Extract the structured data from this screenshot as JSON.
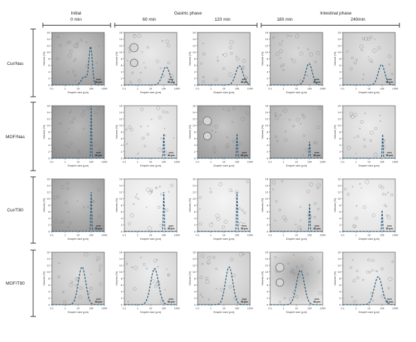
{
  "header": {
    "initial": "Initial",
    "initial_time": "0 min",
    "gastric": "Gastric phase",
    "intestinal": "Intestinal phase",
    "times": [
      "60 min",
      "120 min",
      "180 min",
      "240min"
    ]
  },
  "rows": [
    "Cur/Nas",
    "MOF/Nas",
    "Cur/T80",
    "MOF/T80"
  ],
  "axis": {
    "ylabel": "Volume (%)",
    "xlabel": "Droplet size (μm)",
    "yticks": [
      "0",
      "2",
      "4",
      "6",
      "8",
      "10",
      "12",
      "14",
      "16"
    ],
    "xticks": [
      "0.1",
      "1",
      "10",
      "100",
      "1000"
    ]
  },
  "scale_bar": "50 μm",
  "colors": {
    "curve": "#2d5f7f",
    "frame": "#555555",
    "bracket": "#333333"
  },
  "chart_data": {
    "type": "line",
    "description_units": "x = droplet size (μm, log scale), y = volume (%)",
    "xlim": [
      0.1,
      1000
    ],
    "ylim": [
      0,
      16
    ],
    "xscale": "log",
    "columns": [
      "0 min",
      "60 min",
      "120 min",
      "180 min",
      "240min"
    ],
    "panels": [
      {
        "row": "Cur/Nas",
        "col": "0 min",
        "peaks": [
          {
            "x": 30,
            "y": 2.5,
            "w": 0.22
          },
          {
            "x": 90,
            "y": 11.5,
            "w": 0.13
          }
        ]
      },
      {
        "row": "Cur/Nas",
        "col": "60 min",
        "peaks": [
          {
            "x": 150,
            "y": 5.5,
            "w": 0.28
          }
        ]
      },
      {
        "row": "Cur/Nas",
        "col": "120 min",
        "peaks": [
          {
            "x": 150,
            "y": 5.8,
            "w": 0.28
          }
        ]
      },
      {
        "row": "Cur/Nas",
        "col": "180 min",
        "peaks": [
          {
            "x": 90,
            "y": 6.5,
            "w": 0.25
          }
        ]
      },
      {
        "row": "Cur/Nas",
        "col": "240min",
        "peaks": [
          {
            "x": 90,
            "y": 6.2,
            "w": 0.25
          }
        ]
      },
      {
        "row": "MOF/Nas",
        "col": "0 min",
        "peaks": [
          {
            "x": 100,
            "y": 16,
            "w": 0.03
          }
        ]
      },
      {
        "row": "MOF/Nas",
        "col": "60 min",
        "peaks": [
          {
            "x": 100,
            "y": 7.5,
            "w": 0.035
          }
        ]
      },
      {
        "row": "MOF/Nas",
        "col": "120 min",
        "peaks": [
          {
            "x": 100,
            "y": 7.5,
            "w": 0.035
          }
        ]
      },
      {
        "row": "MOF/Nas",
        "col": "180 min",
        "peaks": [
          {
            "x": 100,
            "y": 5.0,
            "w": 0.035
          }
        ]
      },
      {
        "row": "MOF/Nas",
        "col": "240min",
        "peaks": [
          {
            "x": 110,
            "y": 7.5,
            "w": 0.035
          }
        ]
      },
      {
        "row": "Cur/T80",
        "col": "0 min",
        "peaks": [
          {
            "x": 100,
            "y": 12,
            "w": 0.035
          }
        ]
      },
      {
        "row": "Cur/T80",
        "col": "60 min",
        "peaks": [
          {
            "x": 100,
            "y": 12,
            "w": 0.035
          }
        ]
      },
      {
        "row": "Cur/T80",
        "col": "120 min",
        "peaks": [
          {
            "x": 100,
            "y": 12,
            "w": 0.035
          }
        ]
      },
      {
        "row": "Cur/T80",
        "col": "180 min",
        "peaks": [
          {
            "x": 100,
            "y": 8.5,
            "w": 0.035
          }
        ]
      },
      {
        "row": "Cur/T80",
        "col": "240min",
        "peaks": [
          {
            "x": 100,
            "y": 6.5,
            "w": 0.035
          }
        ]
      },
      {
        "row": "MOF/T80",
        "col": "0 min",
        "peaks": [
          {
            "x": 20,
            "y": 11.5,
            "w": 0.28
          }
        ]
      },
      {
        "row": "MOF/T80",
        "col": "60 min",
        "peaks": [
          {
            "x": 20,
            "y": 11.0,
            "w": 0.3
          }
        ]
      },
      {
        "row": "MOF/T80",
        "col": "120 min",
        "peaks": [
          {
            "x": 25,
            "y": 11.5,
            "w": 0.28
          }
        ]
      },
      {
        "row": "MOF/T80",
        "col": "180 min",
        "peaks": [
          {
            "x": 20,
            "y": 10.5,
            "w": 0.3
          }
        ]
      },
      {
        "row": "MOF/T80",
        "col": "240min",
        "peaks": [
          {
            "x": 50,
            "y": 8.5,
            "w": 0.3
          }
        ]
      }
    ]
  }
}
